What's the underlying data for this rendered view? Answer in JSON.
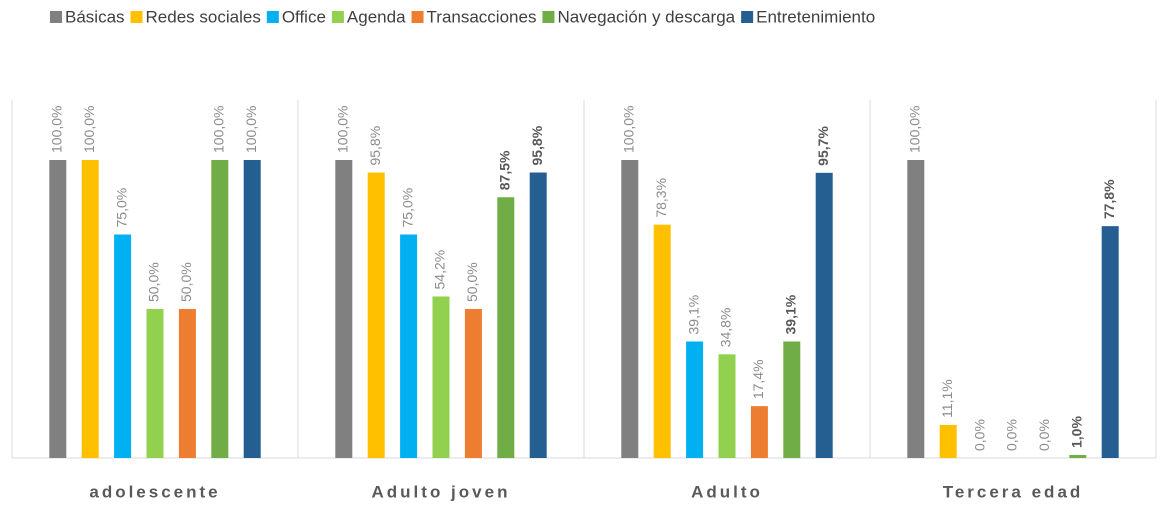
{
  "chart_data": {
    "type": "bar",
    "categories": [
      "adolescente",
      "Adulto joven",
      "Adulto",
      "Tercera edad"
    ],
    "ylim": [
      0,
      100
    ],
    "series": [
      {
        "name": "Básicas",
        "color": "#808080",
        "values": [
          100,
          100,
          100,
          100
        ],
        "value_labels": [
          "100,0%",
          "100,0%",
          "100,0%",
          "100,0%"
        ]
      },
      {
        "name": "Redes sociales",
        "color": "#ffc000",
        "values": [
          100,
          95.8,
          78.3,
          11.1
        ],
        "value_labels": [
          "100,0%",
          "95,8%",
          "78,3%",
          "11,1%"
        ]
      },
      {
        "name": "Office",
        "color": "#00b0f0",
        "values": [
          75,
          75,
          39.1,
          0
        ],
        "value_labels": [
          "75,0%",
          "75,0%",
          "39,1%",
          "0,0%"
        ]
      },
      {
        "name": "Agenda",
        "color": "#92d050",
        "values": [
          50,
          54.2,
          34.8,
          0
        ],
        "value_labels": [
          "50,0%",
          "54,2%",
          "34,8%",
          "0,0%"
        ]
      },
      {
        "name": "Transacciones",
        "color": "#ed7d31",
        "values": [
          50,
          50,
          17.4,
          0
        ],
        "value_labels": [
          "50,0%",
          "50,0%",
          "17,4%",
          "0,0%"
        ]
      },
      {
        "name": "Navegación y descarga",
        "color": "#70ad47",
        "values": [
          100,
          87.5,
          39.1,
          1.0
        ],
        "value_labels": [
          "100,0%",
          "87,5%",
          "39,1%",
          "1,0%"
        ]
      },
      {
        "name": "Entretenimiento",
        "color": "#255e91",
        "values": [
          100,
          95.8,
          95.7,
          77.8
        ],
        "value_labels": [
          "100,0%",
          "95,8%",
          "95,7%",
          "77,8%"
        ]
      }
    ]
  }
}
